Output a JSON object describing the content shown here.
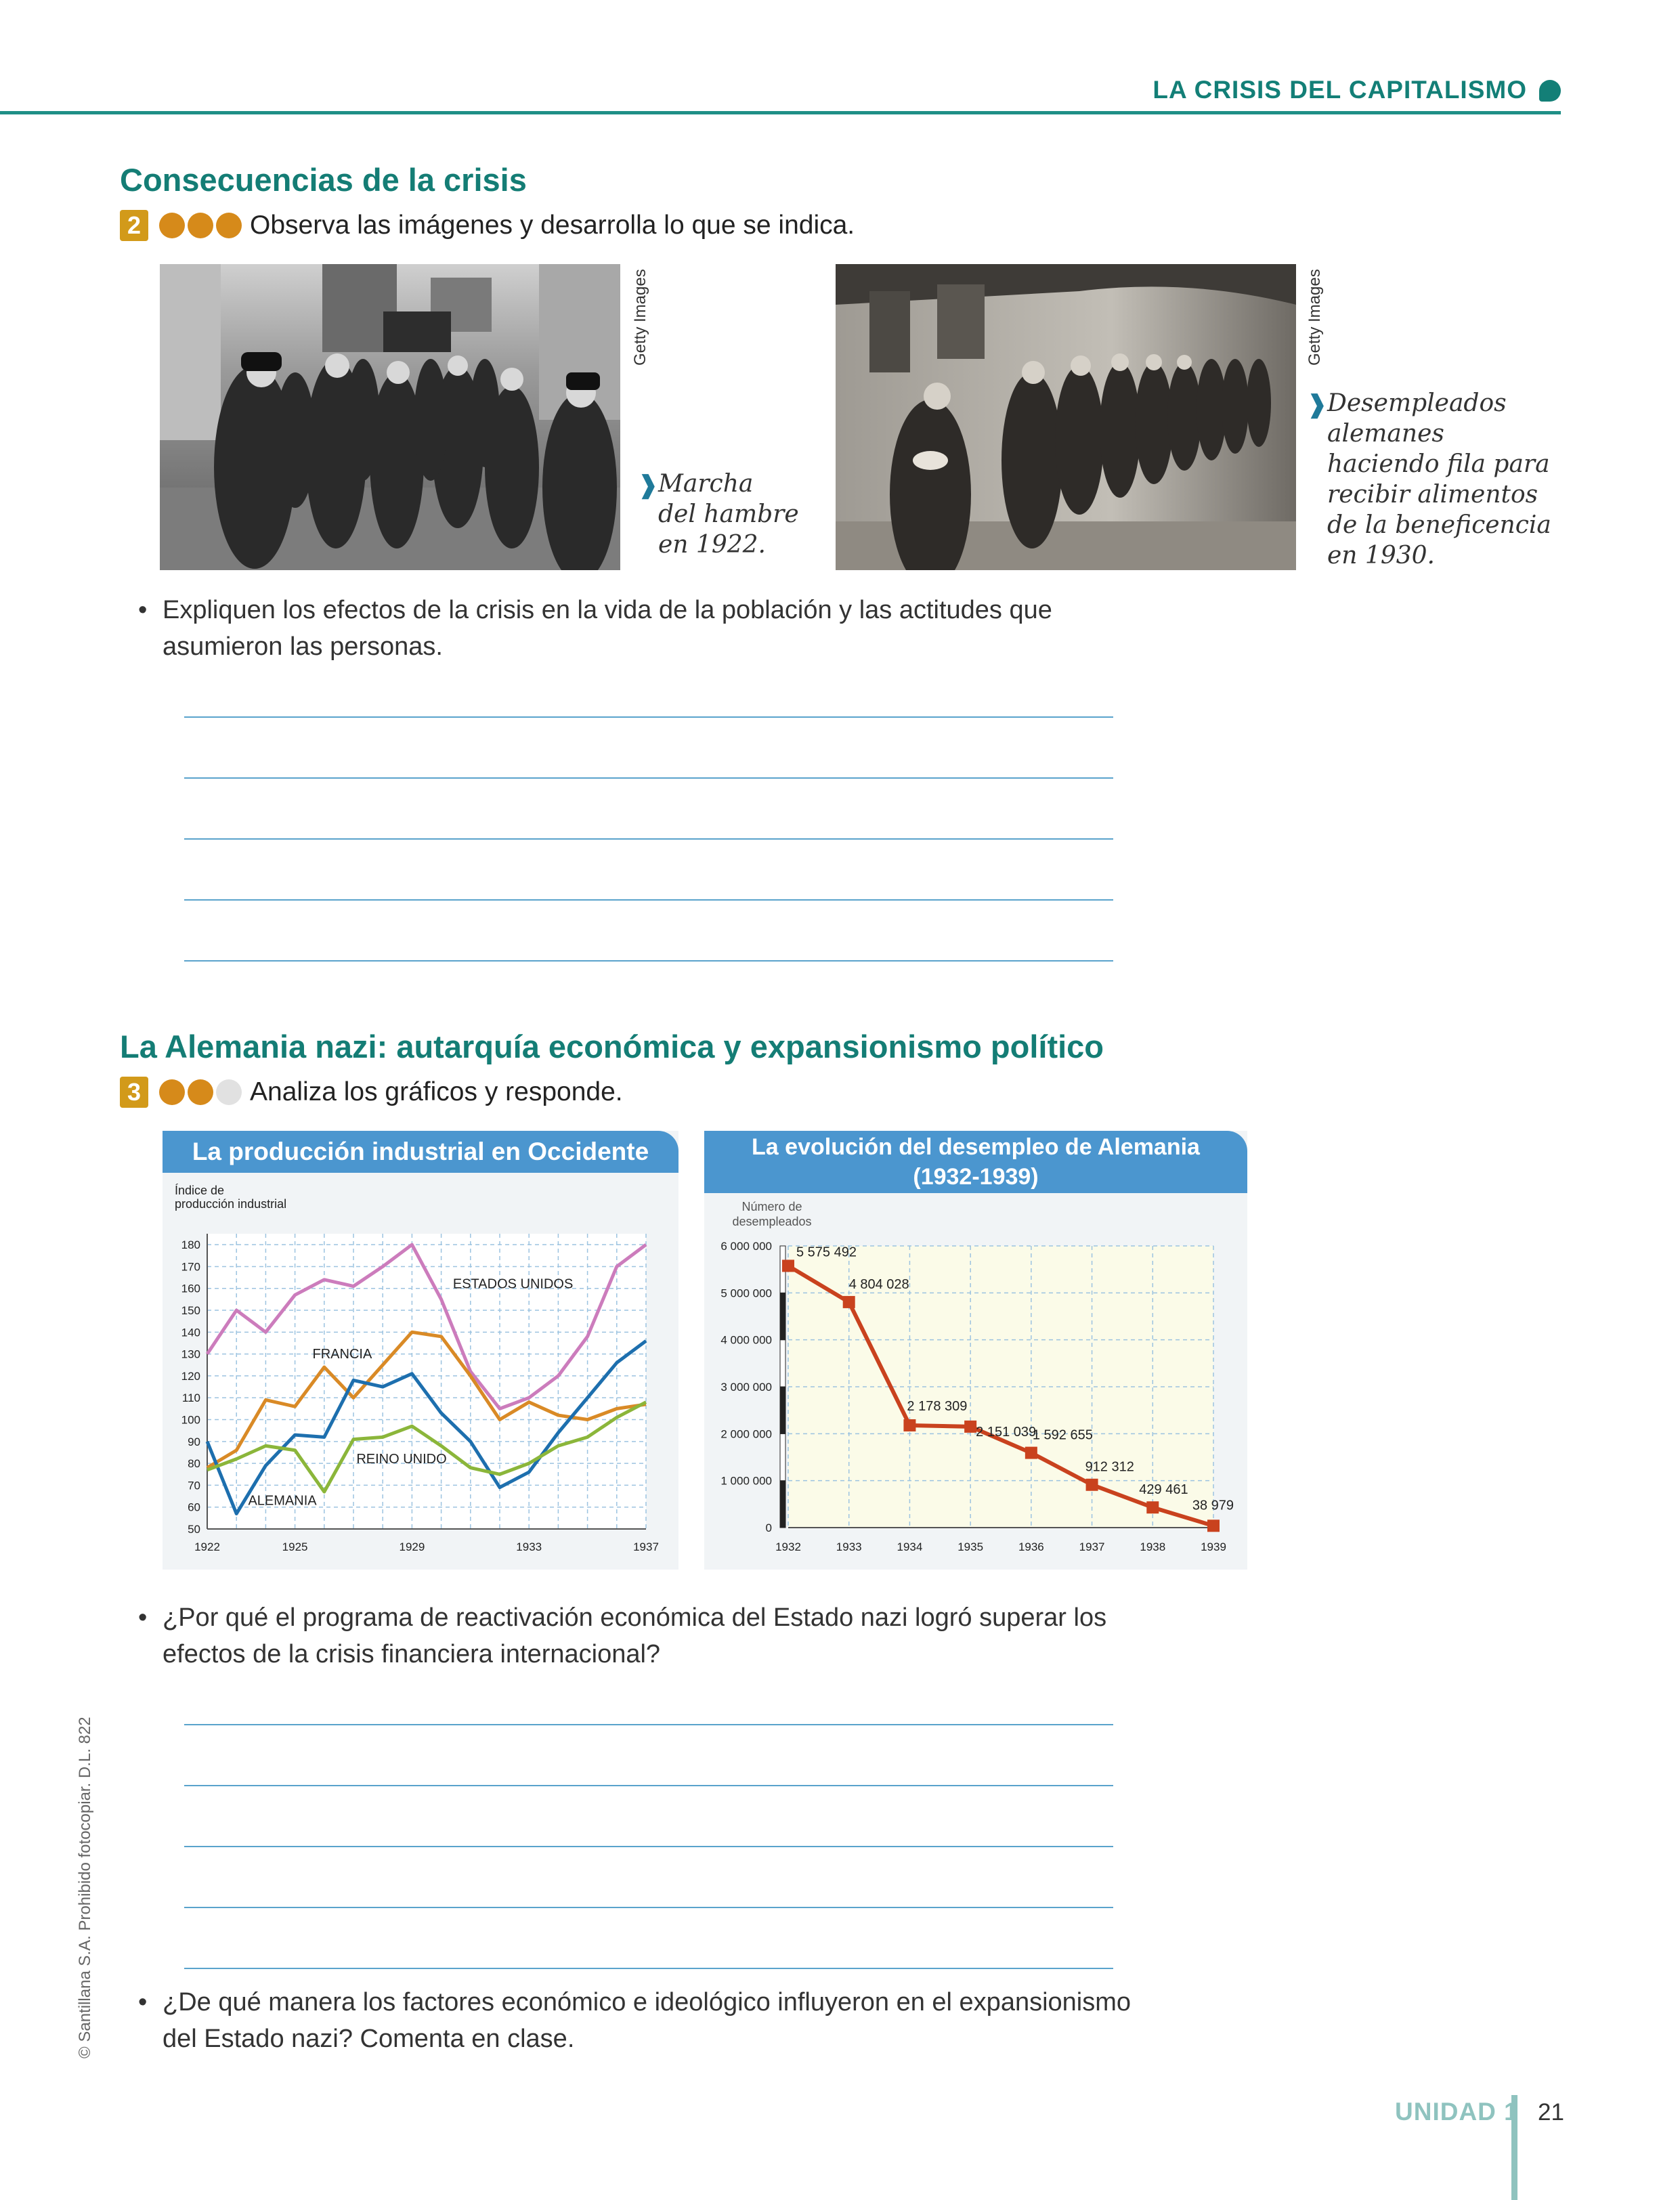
{
  "header": {
    "title": "LA CRISIS DEL CAPITALISMO"
  },
  "section1": {
    "title": "Consecuencias de la crisis",
    "activity": {
      "number": "2",
      "level": 3,
      "instruction": "Observa las imágenes y desarrolla lo que se indica."
    },
    "photo1": {
      "credit": "Getty Images",
      "caption": [
        "Marcha",
        "del hambre",
        "en 1922."
      ]
    },
    "photo2": {
      "credit": "Getty Images",
      "caption": [
        "Desempleados",
        "alemanes",
        "haciendo fila para",
        "recibir alimentos",
        "de la beneficencia",
        "en 1930."
      ]
    },
    "question": [
      "Expliquen los efectos de la crisis en la vida de la población y las actitudes que",
      "asumieron las personas."
    ]
  },
  "section2": {
    "title": "La Alemania nazi: autarquía económica y expansionismo político",
    "activity": {
      "number": "3",
      "level": 2,
      "instruction": "Analiza los gráficos y responde."
    },
    "question1": [
      "¿Por qué el programa de reactivación económica del Estado nazi logró superar los",
      "efectos de la crisis financiera internacional?"
    ],
    "question2": [
      "¿De qué manera los factores económico e ideológico influyeron en el expansionismo",
      "del Estado nazi? Comenta en clase."
    ]
  },
  "chart_data": [
    {
      "type": "line",
      "title": "La producción industrial en Occidente",
      "ylabel": [
        "Índice de",
        "producción industrial"
      ],
      "x": [
        1922,
        1923,
        1924,
        1925,
        1926,
        1927,
        1928,
        1929,
        1930,
        1931,
        1932,
        1933,
        1934,
        1935,
        1936,
        1937
      ],
      "x_ticks": [
        "1922",
        "1925",
        "1929",
        "1933",
        "1937"
      ],
      "x_tick_values": [
        1922,
        1925,
        1929,
        1933,
        1937
      ],
      "y_ticks": [
        50,
        60,
        70,
        80,
        90,
        100,
        110,
        120,
        130,
        140,
        150,
        160,
        170,
        180
      ],
      "ylim": [
        50,
        185
      ],
      "xlim": [
        1922,
        1937
      ],
      "grid": true,
      "series": [
        {
          "name": "ESTADOS UNIDOS",
          "color": "#cc7cbc",
          "values": [
            130,
            150,
            140,
            157,
            164,
            161,
            170,
            180,
            155,
            122,
            105,
            110,
            120,
            138,
            170,
            180
          ]
        },
        {
          "name": "FRANCIA",
          "color": "#d98a26",
          "values": [
            78,
            86,
            109,
            106,
            124,
            110,
            125,
            140,
            138,
            120,
            100,
            108,
            102,
            100,
            105,
            107
          ]
        },
        {
          "name": "ALEMANIA",
          "color": "#1d6fae",
          "values": [
            90,
            57,
            79,
            93,
            92,
            118,
            115,
            121,
            103,
            90,
            69,
            76,
            94,
            110,
            126,
            136
          ]
        },
        {
          "name": "REINO UNIDO",
          "color": "#8bb63a",
          "values": [
            77,
            82,
            88,
            86,
            67,
            91,
            92,
            97,
            88,
            78,
            75,
            80,
            88,
            92,
            101,
            108
          ]
        }
      ]
    },
    {
      "type": "line",
      "title": [
        "La evolución del desempleo de Alemania",
        "(1932-1939)"
      ],
      "ylabel": [
        "Número de",
        "desempleados"
      ],
      "x": [
        1932,
        1933,
        1934,
        1935,
        1936,
        1937,
        1938,
        1939
      ],
      "values": [
        5575492,
        4804028,
        2178309,
        2151039,
        1592655,
        912312,
        429461,
        38979
      ],
      "data_labels": [
        "5 575 492",
        "4 804 028",
        "2 178 309",
        "2 151 039",
        "1 592 655",
        "912 312",
        "429 461",
        "38 979"
      ],
      "y_ticks": [
        0,
        1000000,
        2000000,
        3000000,
        4000000,
        5000000,
        6000000
      ],
      "y_tick_labels": [
        "0",
        "1 000 000",
        "2 000 000",
        "3 000 000",
        "4 000 000",
        "5 000 000",
        "6 000 000"
      ],
      "ylim": [
        0,
        6000000
      ],
      "color": "#c9421e",
      "grid": true
    }
  ],
  "footer": {
    "copyright": "© Santillana S.A. Prohibido fotocopiar. D.L. 822",
    "unit": "UNIDAD 1",
    "page": "21"
  }
}
